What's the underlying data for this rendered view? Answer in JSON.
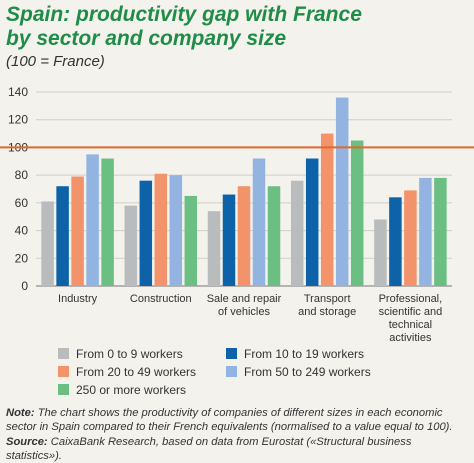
{
  "title_line1": "Spain: productivity gap with France",
  "title_line2": "by sector and company size",
  "subtitle": "(100 = France)",
  "chart_data": {
    "type": "bar",
    "categories": [
      [
        "Industry"
      ],
      [
        "Construction"
      ],
      [
        "Sale and repair",
        "of vehicles"
      ],
      [
        "Transport",
        "and storage"
      ],
      [
        "Professional,",
        "scientific and",
        "technical",
        "activities"
      ]
    ],
    "series": [
      {
        "name": "From 0 to 9 workers",
        "color": "#b9bcbc",
        "values": [
          61,
          58,
          54,
          76,
          48
        ]
      },
      {
        "name": "From 10 to 19 workers",
        "color": "#0e63a8",
        "values": [
          72,
          76,
          66,
          92,
          64
        ]
      },
      {
        "name": "From 20 to 49 workers",
        "color": "#f2936b",
        "values": [
          79,
          81,
          72,
          110,
          69
        ]
      },
      {
        "name": "From 50 to 249 workers",
        "color": "#93b4e0",
        "values": [
          95,
          80,
          92,
          136,
          78
        ]
      },
      {
        "name": "250 or more workers",
        "color": "#6cbf82",
        "values": [
          92,
          65,
          72,
          105,
          78
        ]
      }
    ],
    "yticks": [
      "0",
      "20",
      "40",
      "60",
      "80",
      "100",
      "120",
      "140"
    ],
    "ylim": [
      0,
      140
    ],
    "reference_line": {
      "value": 100,
      "color": "#e0692c"
    },
    "grid": "horizontal",
    "legend_position": "bottom"
  },
  "notes": {
    "note_label": "Note:",
    "note_text": " The chart shows the productivity of companies of different sizes in each economic sector in Spain compared to their French equivalents (normalised to a value equal to 100).",
    "source_label": "Source:",
    "source_text": " CaixaBank Research, based on data from Eurostat («Structural business statistics»)."
  }
}
